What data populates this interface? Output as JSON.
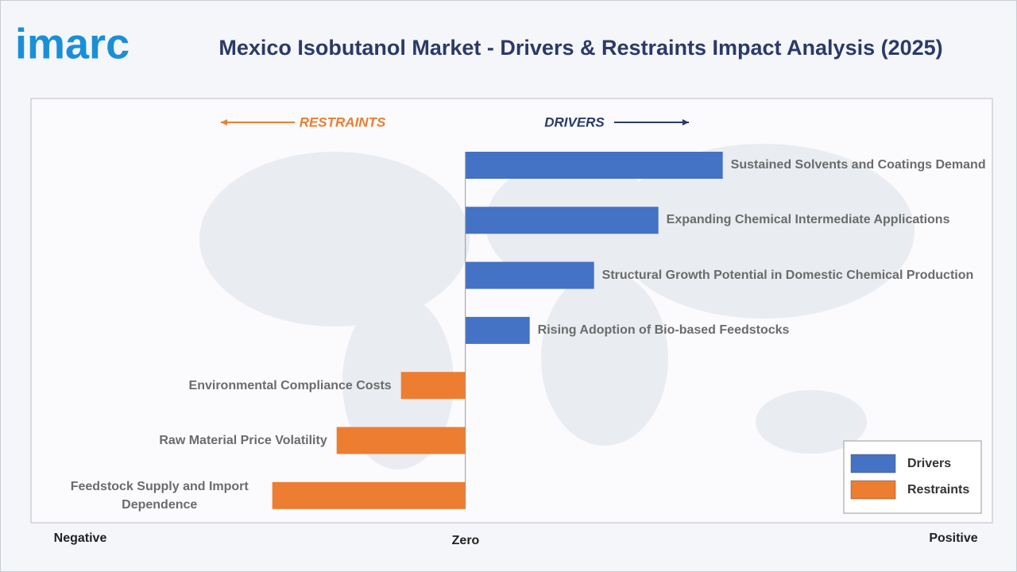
{
  "brand": "imarc",
  "chart_data": {
    "type": "diverging-bar",
    "title": "Mexico Isobutanol Market - Drivers & Restraints Impact Analysis (2025)",
    "direction_labels": {
      "restraints": "RESTRAINTS",
      "drivers": "DRIVERS"
    },
    "axis_labels": {
      "negative": "Negative",
      "zero": "Zero",
      "positive": "Positive"
    },
    "categories": [
      "Sustained Solvents and Coatings Demand",
      "Expanding Chemical Intermediate Applications",
      "Structural Growth Potential in Domestic Chemical Production",
      "Rising Adoption of Bio-based Feedstocks",
      "Environmental Compliance Costs",
      "Raw Material Price Volatility",
      "Feedstock Supply and Import Dependence"
    ],
    "series": [
      {
        "name": "Drivers",
        "color": "#4472c4",
        "values": [
          4,
          3,
          2,
          1,
          null,
          null,
          null
        ]
      },
      {
        "name": "Restraints",
        "color": "#ed7d31",
        "values": [
          null,
          null,
          null,
          null,
          -1,
          -2,
          -3
        ]
      }
    ],
    "xlim": [
      -6.75,
      8.19
    ],
    "legend": "bottom-right"
  }
}
